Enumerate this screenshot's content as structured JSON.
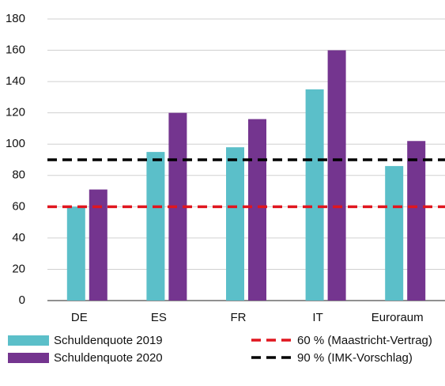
{
  "chart_data": {
    "type": "bar",
    "categories": [
      "DE",
      "ES",
      "FR",
      "IT",
      "Euroraum"
    ],
    "series": [
      {
        "name": "Schuldenquote 2019",
        "color": "#5bbfc9",
        "values": [
          60,
          95,
          98,
          135,
          86
        ]
      },
      {
        "name": "Schuldenquote 2020",
        "color": "#74358f",
        "values": [
          71,
          120,
          116,
          160,
          102
        ]
      }
    ],
    "reference_lines": [
      {
        "name": "60 % (Maastricht-Vertrag)",
        "value": 60,
        "color": "#e0161f"
      },
      {
        "name": "90 % (IMK-Vorschlag)",
        "value": 90,
        "color": "#000000"
      }
    ],
    "ylim": [
      0,
      180
    ],
    "yticks": [
      0,
      20,
      40,
      60,
      80,
      100,
      120,
      140,
      160,
      180
    ],
    "grid": true
  }
}
